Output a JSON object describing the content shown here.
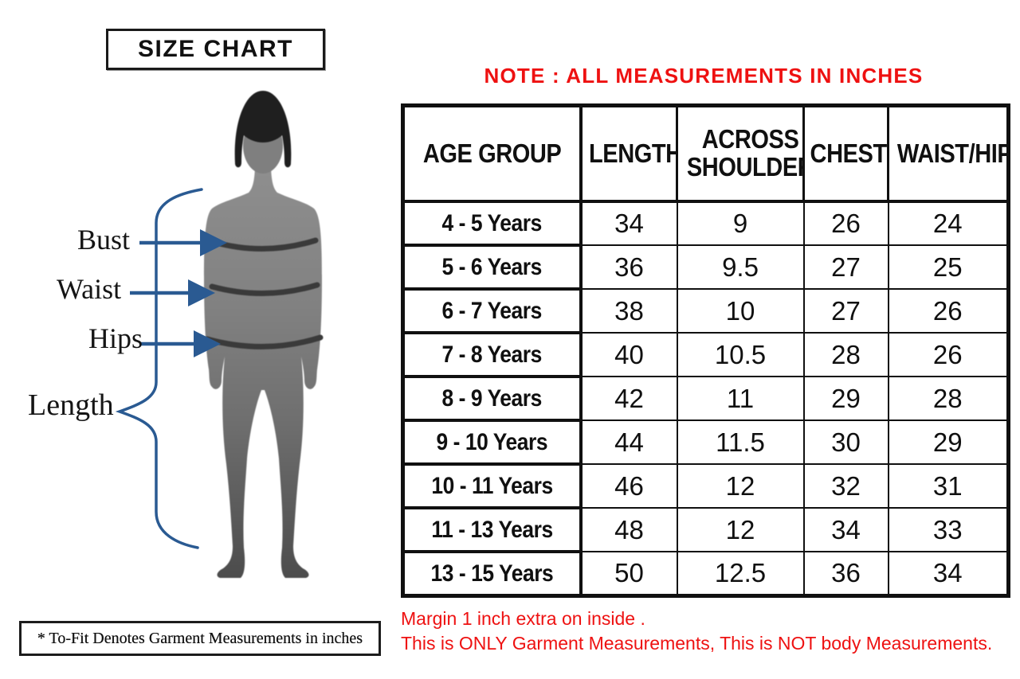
{
  "title_box": {
    "label": "SIZE CHART"
  },
  "measurement_labels": {
    "bust": "Bust",
    "waist": "Waist",
    "hips": "Hips",
    "length": "Length"
  },
  "note_heading": "NOTE : ALL MEASUREMENTS IN INCHES",
  "chart_data": {
    "type": "table",
    "title": "SIZE CHART",
    "columns": [
      "AGE GROUP",
      "LENGTH",
      "ACROSS SHOULDER",
      "CHEST",
      "WAIST/HIP"
    ],
    "rows": [
      [
        "4 - 5 Years",
        "34",
        "9",
        "26",
        "24"
      ],
      [
        "5 - 6 Years",
        "36",
        "9.5",
        "27",
        "25"
      ],
      [
        "6 - 7 Years",
        "38",
        "10",
        "27",
        "26"
      ],
      [
        "7 - 8 Years",
        "40",
        "10.5",
        "28",
        "26"
      ],
      [
        "8 - 9 Years",
        "42",
        "11",
        "29",
        "28"
      ],
      [
        "9 - 10 Years",
        "44",
        "11.5",
        "30",
        "29"
      ],
      [
        "10 - 11 Years",
        "46",
        "12",
        "32",
        "31"
      ],
      [
        "11 - 13 Years",
        "48",
        "12",
        "34",
        "33"
      ],
      [
        "13 - 15 Years",
        "50",
        "12.5",
        "36",
        "34"
      ]
    ]
  },
  "footnotes": {
    "garment_note": "* To-Fit Denotes Garment Measurements in inches",
    "margin_note": "Margin 1 inch extra on inside .",
    "body_note": "This is ONLY Garment Measurements, This is NOT body Measurements."
  },
  "colors": {
    "accent_red": "#ee1111",
    "arrow_blue": "#2a5a92",
    "table_border": "#101010",
    "silhouette_gray": "#828282"
  }
}
